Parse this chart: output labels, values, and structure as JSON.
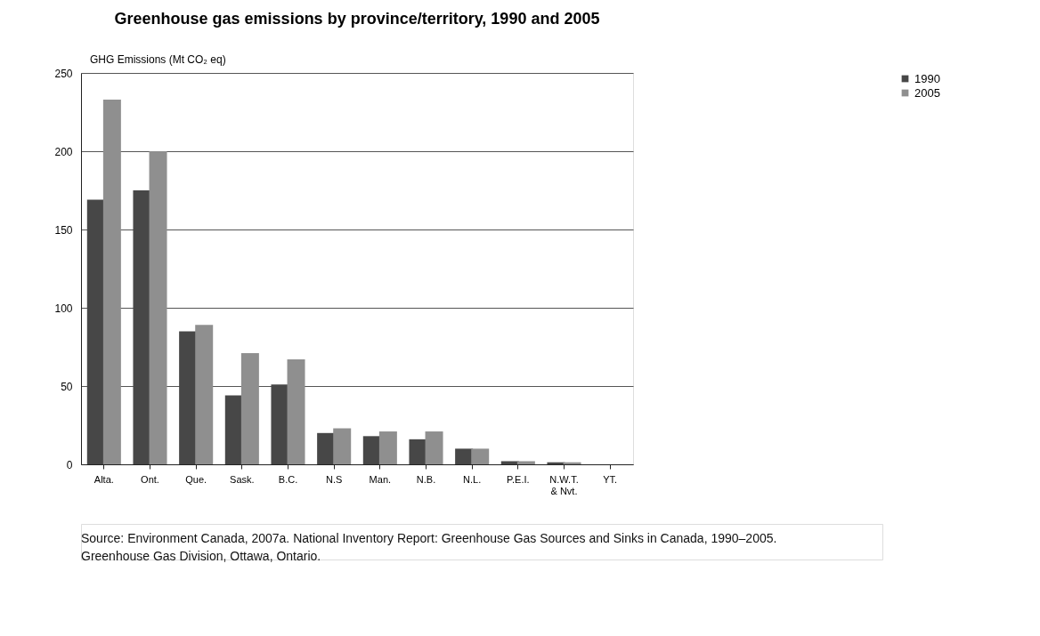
{
  "chart_data": {
    "type": "bar",
    "title": "Greenhouse gas emissions by province/territory, 1990 and 2005",
    "ylabel": "GHG Emissions (Mt CO₂ eq)",
    "categories": [
      "Alta.",
      "Ont.",
      "Que.",
      "Sask.",
      "B.C.",
      "N.S",
      "Man.",
      "N.B.",
      "N.L.",
      "P.E.I.",
      "N.W.T.\n& Nvt.",
      "YT."
    ],
    "series": [
      {
        "name": "1990",
        "color": "#474747",
        "values": [
          169,
          175,
          85,
          44,
          51,
          20,
          18,
          16,
          10,
          2,
          1.3,
          null
        ]
      },
      {
        "name": "2005",
        "color": "#8f8f8f",
        "values": [
          233,
          200,
          89,
          71,
          67,
          23,
          21,
          21,
          10,
          2,
          1.3,
          null
        ]
      }
    ],
    "ylim": [
      0,
      250
    ],
    "yticks": [
      0,
      50,
      100,
      150,
      200,
      250
    ],
    "grid": "y",
    "legend": "top right",
    "annotations": [
      "Source: Environment Canada, 2007a. National Inventory Report: Greenhouse Gas Sources and Sinks in Canada, 1990–2005.",
      "Greenhouse Gas Division, Ottawa, Ontario."
    ]
  }
}
